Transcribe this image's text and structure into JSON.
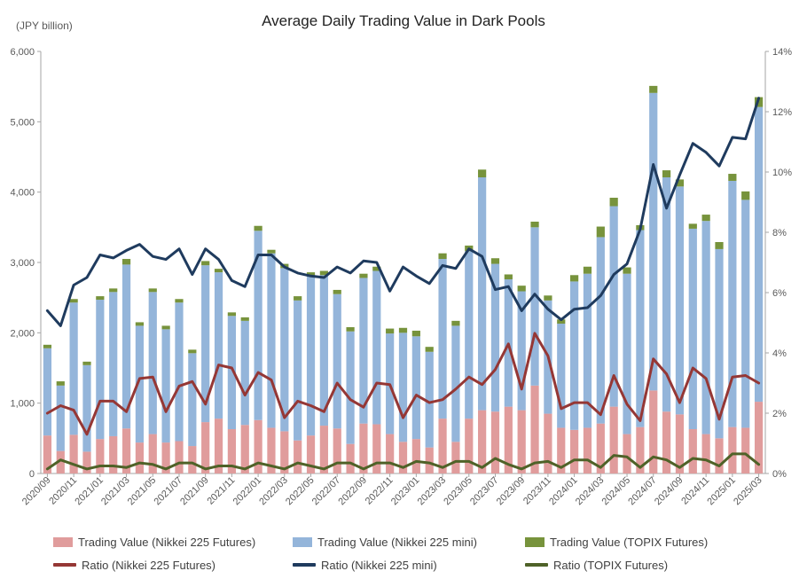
{
  "title": "Average Daily Trading Value in Dark Pools",
  "unit_label": "(JPY billion)",
  "colors": {
    "nk225": "#e09c9c",
    "mini": "#94b5da",
    "topix": "#77933c",
    "ratio_nk225": "#953735",
    "ratio_mini": "#1f3b5e",
    "ratio_topix": "#4f6228",
    "axis": "#a6a6a6"
  },
  "legend": {
    "tv_nk225": "Trading Value (Nikkei 225 Futures)",
    "tv_mini": "Trading Value (Nikkei 225 mini)",
    "tv_topix": "Trading Value (TOPIX Futures)",
    "r_nk225": "Ratio (Nikkei 225 Futures)",
    "r_mini": "Ratio (Nikkei 225 mini)",
    "r_topix": "Ratio (TOPIX Futures)"
  },
  "chart_data": {
    "type": "bar",
    "stacked": true,
    "legend_position": "bottom",
    "grid": false,
    "x": [
      "2020/09",
      "2020/10",
      "2020/11",
      "2020/12",
      "2021/01",
      "2021/02",
      "2021/03",
      "2021/04",
      "2021/05",
      "2021/06",
      "2021/07",
      "2021/08",
      "2021/09",
      "2021/10",
      "2021/11",
      "2021/12",
      "2022/01",
      "2022/02",
      "2022/03",
      "2022/04",
      "2022/05",
      "2022/06",
      "2022/07",
      "2022/08",
      "2022/09",
      "2022/10",
      "2022/11",
      "2022/12",
      "2023/01",
      "2023/02",
      "2023/03",
      "2023/04",
      "2023/05",
      "2023/06",
      "2023/07",
      "2023/08",
      "2023/09",
      "2023/10",
      "2023/11",
      "2023/12",
      "2024/01",
      "2024/02",
      "2024/03",
      "2024/04",
      "2024/05",
      "2024/06",
      "2024/07",
      "2024/08",
      "2024/09",
      "2024/10",
      "2024/11",
      "2024/12",
      "2025/01",
      "2025/02",
      "2025/03"
    ],
    "x_tick_labels": [
      "2020/09",
      "2020/11",
      "2021/01",
      "2021/03",
      "2021/05",
      "2021/07",
      "2021/09",
      "2021/11",
      "2022/01",
      "2022/03",
      "2022/05",
      "2022/07",
      "2022/09",
      "2022/11",
      "2023/01",
      "2023/03",
      "2023/05",
      "2023/07",
      "2023/09",
      "2023/11",
      "2024/01",
      "2024/03",
      "2024/05",
      "2024/07",
      "2024/09",
      "2024/11",
      "2025/01",
      "2025/03"
    ],
    "y_left": {
      "min": 0,
      "max": 6000,
      "ticks": [
        "0",
        "1,000",
        "2,000",
        "3,000",
        "4,000",
        "5,000",
        "6,000"
      ]
    },
    "y_right": {
      "min": 0,
      "max": 14,
      "ticks": [
        "0%",
        "2%",
        "4%",
        "6%",
        "8%",
        "10%",
        "12%",
        "14%"
      ]
    },
    "bar_series": [
      {
        "name": "Trading Value (Nikkei 225 Futures)",
        "axis": "left",
        "values": [
          540,
          320,
          550,
          310,
          490,
          530,
          640,
          440,
          560,
          440,
          460,
          390,
          730,
          780,
          630,
          690,
          760,
          650,
          600,
          470,
          540,
          680,
          640,
          420,
          710,
          700,
          560,
          450,
          490,
          370,
          780,
          450,
          780,
          900,
          880,
          950,
          900,
          1250,
          850,
          650,
          620,
          650,
          710,
          950,
          560,
          660,
          1180,
          880,
          840,
          630,
          560,
          500,
          660,
          650,
          1020
        ]
      },
      {
        "name": "Trading Value (Nikkei 225 mini)",
        "axis": "left",
        "values": [
          1240,
          930,
          1880,
          1230,
          1980,
          2050,
          2330,
          1660,
          2020,
          1610,
          1970,
          1320,
          2230,
          2080,
          1610,
          1480,
          2690,
          2480,
          2320,
          1990,
          2260,
          2140,
          1910,
          1600,
          2070,
          2180,
          1430,
          1550,
          1460,
          1360,
          2270,
          1650,
          2380,
          3310,
          2100,
          1810,
          1690,
          2250,
          1610,
          1480,
          2110,
          2190,
          2650,
          2850,
          2280,
          2800,
          4230,
          3330,
          3240,
          2850,
          3030,
          2690,
          3500,
          3240,
          4190
        ]
      },
      {
        "name": "Trading Value (TOPIX Futures)",
        "axis": "left",
        "values": [
          50,
          60,
          50,
          50,
          50,
          50,
          80,
          50,
          50,
          50,
          50,
          50,
          60,
          50,
          50,
          50,
          70,
          50,
          60,
          60,
          60,
          60,
          60,
          60,
          60,
          60,
          70,
          70,
          80,
          70,
          80,
          70,
          80,
          110,
          80,
          70,
          80,
          80,
          70,
          60,
          90,
          100,
          150,
          120,
          90,
          70,
          100,
          100,
          100,
          70,
          90,
          100,
          100,
          120,
          140
        ]
      }
    ],
    "line_series": [
      {
        "name": "Ratio (Nikkei 225 Futures)",
        "axis": "right",
        "values": [
          2.0,
          2.25,
          2.1,
          1.3,
          2.4,
          2.4,
          2.05,
          3.15,
          3.2,
          2.05,
          2.9,
          3.05,
          2.3,
          3.6,
          3.5,
          2.6,
          3.35,
          3.1,
          1.85,
          2.4,
          2.25,
          2.05,
          3.0,
          2.45,
          2.2,
          3.0,
          2.95,
          1.85,
          2.6,
          2.35,
          2.45,
          2.8,
          3.2,
          2.95,
          3.45,
          4.3,
          2.8,
          4.65,
          3.9,
          2.15,
          2.35,
          2.35,
          1.95,
          3.25,
          2.3,
          1.75,
          3.8,
          3.3,
          2.35,
          3.5,
          3.15,
          1.8,
          3.2,
          3.25,
          3.0
        ]
      },
      {
        "name": "Ratio (Nikkei 225 mini)",
        "axis": "right",
        "values": [
          5.4,
          4.9,
          6.25,
          6.5,
          7.25,
          7.15,
          7.4,
          7.6,
          7.2,
          7.1,
          7.45,
          6.6,
          7.45,
          7.1,
          6.4,
          6.2,
          7.25,
          7.25,
          6.85,
          6.65,
          6.55,
          6.5,
          6.85,
          6.65,
          7.05,
          7.0,
          6.05,
          6.85,
          6.55,
          6.3,
          6.9,
          6.8,
          7.45,
          7.2,
          6.1,
          6.2,
          5.4,
          5.95,
          5.45,
          5.1,
          5.45,
          5.5,
          5.9,
          6.6,
          6.95,
          8.1,
          10.25,
          8.8,
          9.9,
          10.95,
          10.65,
          10.2,
          11.15,
          11.1,
          12.45
        ]
      },
      {
        "name": "Ratio (TOPIX Futures)",
        "axis": "right",
        "values": [
          0.15,
          0.45,
          0.3,
          0.15,
          0.25,
          0.25,
          0.2,
          0.35,
          0.3,
          0.15,
          0.35,
          0.35,
          0.15,
          0.25,
          0.25,
          0.15,
          0.35,
          0.25,
          0.15,
          0.35,
          0.25,
          0.15,
          0.35,
          0.35,
          0.15,
          0.35,
          0.35,
          0.2,
          0.4,
          0.35,
          0.2,
          0.4,
          0.4,
          0.2,
          0.5,
          0.3,
          0.15,
          0.35,
          0.4,
          0.2,
          0.45,
          0.45,
          0.2,
          0.6,
          0.55,
          0.2,
          0.55,
          0.45,
          0.2,
          0.5,
          0.45,
          0.25,
          0.65,
          0.65,
          0.3
        ]
      }
    ]
  }
}
